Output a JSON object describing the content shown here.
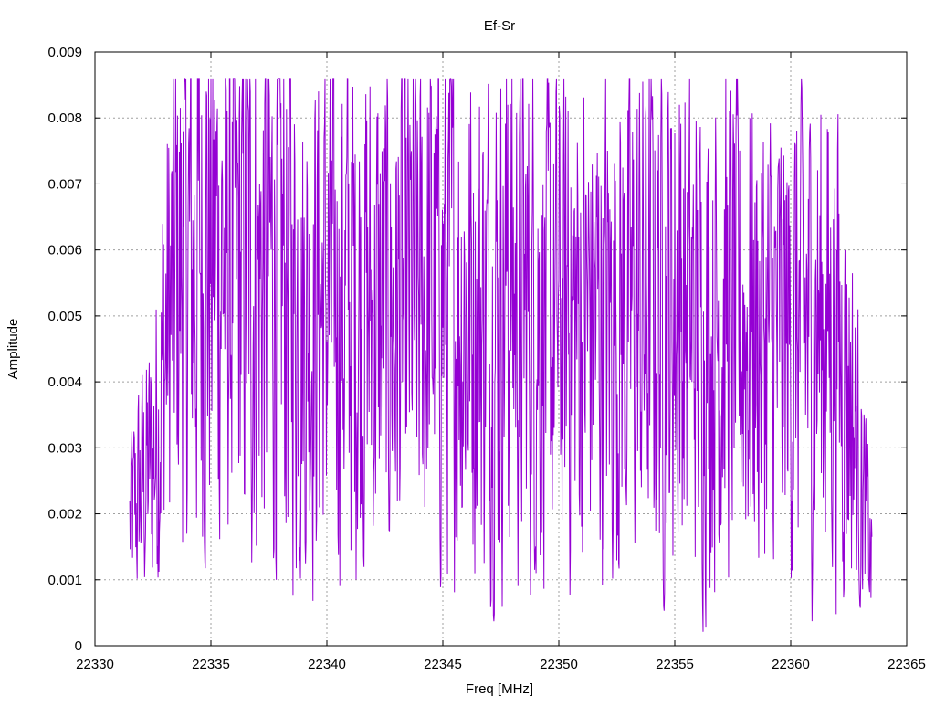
{
  "chart_data": {
    "type": "line",
    "title": "Ef-Sr",
    "xlabel": "Freq [MHz]",
    "ylabel": "Amplitude",
    "xlim": [
      22330,
      22365
    ],
    "ylim": [
      0,
      0.009
    ],
    "xticks": [
      22330,
      22335,
      22340,
      22345,
      22350,
      22355,
      22360,
      22365
    ],
    "yticks": [
      0,
      0.001,
      0.002,
      0.003,
      0.004,
      0.005,
      0.006,
      0.007,
      0.008,
      0.009
    ],
    "xtick_labels": [
      "22330",
      "22335",
      "22340",
      "22345",
      "22350",
      "22355",
      "22360",
      "22365"
    ],
    "ytick_labels": [
      "0",
      "0.001",
      "0.002",
      "0.003",
      "0.004",
      "0.005",
      "0.006",
      "0.007",
      "0.008",
      "0.009"
    ],
    "grid": true,
    "legend": "none",
    "series": [
      {
        "color": "#9400d3",
        "x_start": 22331.5,
        "x_end": 22363.5,
        "envelope": [
          [
            22331.5,
            0.0018
          ],
          [
            22332.0,
            0.0024
          ],
          [
            22332.5,
            0.0028
          ],
          [
            22333.0,
            0.0045
          ],
          [
            22333.5,
            0.0055
          ],
          [
            22334.0,
            0.0058
          ],
          [
            22335.0,
            0.006
          ],
          [
            22336.0,
            0.0058
          ],
          [
            22337.0,
            0.0055
          ],
          [
            22338.0,
            0.0058
          ],
          [
            22339.0,
            0.005
          ],
          [
            22340.0,
            0.0052
          ],
          [
            22341.0,
            0.0053
          ],
          [
            22342.0,
            0.005
          ],
          [
            22343.0,
            0.005
          ],
          [
            22344.0,
            0.0052
          ],
          [
            22345.0,
            0.0054
          ],
          [
            22346.0,
            0.0052
          ],
          [
            22347.0,
            0.005
          ],
          [
            22348.0,
            0.0053
          ],
          [
            22349.0,
            0.0051
          ],
          [
            22350.0,
            0.0048
          ],
          [
            22351.0,
            0.005
          ],
          [
            22352.0,
            0.0049
          ],
          [
            22353.0,
            0.005
          ],
          [
            22354.0,
            0.0051
          ],
          [
            22355.0,
            0.0052
          ],
          [
            22356.0,
            0.0047
          ],
          [
            22357.0,
            0.005
          ],
          [
            22358.0,
            0.0049
          ],
          [
            22359.0,
            0.0046
          ],
          [
            22360.0,
            0.0047
          ],
          [
            22361.0,
            0.0049
          ],
          [
            22362.0,
            0.0047
          ],
          [
            22362.5,
            0.004
          ],
          [
            22363.0,
            0.0026
          ],
          [
            22363.5,
            0.0012
          ]
        ],
        "peaks": [
          [
            22333.8,
            0.0078
          ],
          [
            22334.8,
            0.0084
          ],
          [
            22335.7,
            0.0081
          ],
          [
            22336.7,
            0.0084
          ],
          [
            22338.0,
            0.008
          ],
          [
            22343.2,
            0.0081
          ],
          [
            22347.8,
            0.0082
          ],
          [
            22350.4,
            0.0081
          ],
          [
            22354.0,
            0.0082
          ],
          [
            22355.2,
            0.0082
          ],
          [
            22360.5,
            0.0078
          ]
        ]
      }
    ]
  }
}
